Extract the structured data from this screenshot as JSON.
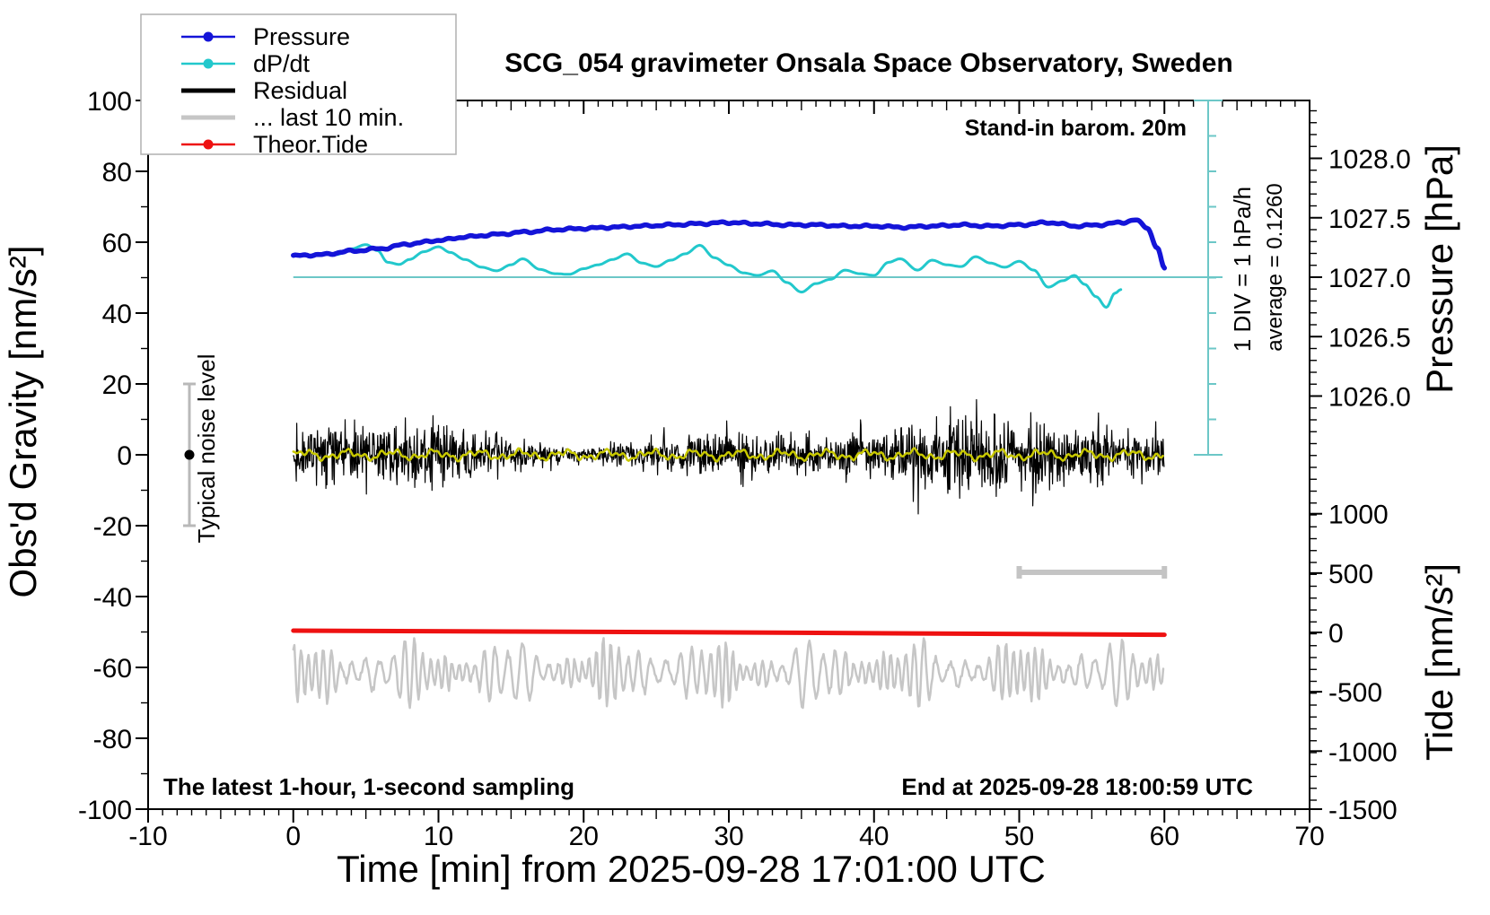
{
  "title": "SCG_054 gravimeter Onsala Space Observatory, Sweden",
  "annotations": {
    "stand_in": "Stand-in barom. 20m",
    "div_scale": "1 DIV = 1 hPa/h",
    "average": "average = 0.1260",
    "noise_label": "Typical noise level",
    "sampling_note": "The latest 1-hour, 1-second sampling",
    "end_note": "End at 2025-09-28 18:00:59 UTC"
  },
  "axes": {
    "x": {
      "title": "Time [min] from 2025-09-28 17:01:00 UTC",
      "min": -10,
      "max": 70,
      "major_ticks": [
        -10,
        0,
        10,
        20,
        30,
        40,
        50,
        60,
        70
      ]
    },
    "gravity": {
      "title": "Obs'd Gravity [nm/s²]",
      "min": -100,
      "max": 100,
      "major_ticks": [
        100,
        80,
        60,
        40,
        20,
        0,
        -20,
        -40,
        -60,
        -80,
        -100
      ]
    },
    "pressure": {
      "title": "Pressure [hPa]",
      "tick_values": [
        1028.0,
        1027.5,
        1027.0,
        1026.5,
        1026.0
      ],
      "tick_labels": [
        "1028.0",
        "1027.5",
        "1027.0",
        "1026.5",
        "1026.0"
      ]
    },
    "tide": {
      "title": "Tide [nm/s²]",
      "tick_values": [
        1000,
        500,
        0,
        -500,
        -1000,
        -1500
      ],
      "tick_labels": [
        "1000",
        "500",
        "0",
        "-500",
        "-1000",
        "-1500"
      ]
    }
  },
  "legend": [
    {
      "label": "Pressure",
      "color": "#1414d8",
      "width": 2.5,
      "dot": true
    },
    {
      "label": "dP/dt",
      "color": "#22c8cc",
      "width": 2.5,
      "dot": true
    },
    {
      "label": "Residual",
      "color": "#000000",
      "width": 5,
      "dot": false
    },
    {
      "label": "... last 10 min.",
      "color": "#c6c6c6",
      "width": 5,
      "dot": false
    },
    {
      "label": "Theor.Tide",
      "color": "#ee1111",
      "width": 2.5,
      "dot": true
    }
  ],
  "colors": {
    "pressure": "#1414d8",
    "dpdt": "#22c8cc",
    "dpdt_reference": "#6cc7c7",
    "residual": "#000000",
    "residual_filtered": "#c8c800",
    "last10": "#c6c6c6",
    "tide": "#ee1111",
    "gray_marker": "#b9b9b9",
    "axis": "#000000"
  },
  "chart_data": {
    "type": "line",
    "x_range_min": [
      -10,
      70
    ],
    "gravity_range": [
      -100,
      100
    ],
    "pressure_axis_range_labeled": [
      1026.0,
      1028.0
    ],
    "tide_axis_range": [
      -1500,
      1000
    ],
    "dpdt_scale": {
      "zero_at_gravity": 50,
      "divisions": 10,
      "div_value_hPa_per_h": 1,
      "average_hPa_per_h": 0.126
    },
    "series": [
      {
        "name": "Pressure",
        "units": "hPa",
        "keypoints_t_min_vs_hPa": [
          [
            0,
            1027.18
          ],
          [
            2,
            1027.19
          ],
          [
            4,
            1027.22
          ],
          [
            6,
            1027.24
          ],
          [
            8,
            1027.28
          ],
          [
            10,
            1027.31
          ],
          [
            12,
            1027.34
          ],
          [
            14,
            1027.36
          ],
          [
            16,
            1027.38
          ],
          [
            18,
            1027.4
          ],
          [
            20,
            1027.41
          ],
          [
            22,
            1027.42
          ],
          [
            24,
            1027.43
          ],
          [
            26,
            1027.44
          ],
          [
            28,
            1027.45
          ],
          [
            30,
            1027.46
          ],
          [
            32,
            1027.45
          ],
          [
            34,
            1027.44
          ],
          [
            36,
            1027.44
          ],
          [
            38,
            1027.43
          ],
          [
            40,
            1027.43
          ],
          [
            42,
            1027.42
          ],
          [
            44,
            1027.43
          ],
          [
            46,
            1027.44
          ],
          [
            48,
            1027.43
          ],
          [
            50,
            1027.44
          ],
          [
            52,
            1027.46
          ],
          [
            54,
            1027.43
          ],
          [
            55.5,
            1027.44
          ],
          [
            57,
            1027.46
          ],
          [
            58,
            1027.48
          ],
          [
            58.8,
            1027.42
          ],
          [
            59.5,
            1027.25
          ],
          [
            60,
            1027.07
          ]
        ]
      },
      {
        "name": "dP/dt",
        "units": "hPa/h",
        "keypoints_t_min_vs_hPa_per_h": [
          [
            3,
            0.64
          ],
          [
            4,
            0.8
          ],
          [
            5,
            0.92
          ],
          [
            5.8,
            0.75
          ],
          [
            6.5,
            0.42
          ],
          [
            7.3,
            0.36
          ],
          [
            8,
            0.5
          ],
          [
            9,
            0.72
          ],
          [
            10,
            0.86
          ],
          [
            10.8,
            0.7
          ],
          [
            11.8,
            0.5
          ],
          [
            13,
            0.28
          ],
          [
            14,
            0.18
          ],
          [
            15,
            0.35
          ],
          [
            15.8,
            0.52
          ],
          [
            17,
            0.22
          ],
          [
            18,
            0.1
          ],
          [
            19,
            0.08
          ],
          [
            20,
            0.24
          ],
          [
            21,
            0.35
          ],
          [
            22,
            0.5
          ],
          [
            23,
            0.66
          ],
          [
            24,
            0.4
          ],
          [
            25,
            0.3
          ],
          [
            26,
            0.48
          ],
          [
            27,
            0.66
          ],
          [
            28,
            0.9
          ],
          [
            29,
            0.55
          ],
          [
            30,
            0.34
          ],
          [
            31,
            0.12
          ],
          [
            32,
            0.05
          ],
          [
            33,
            0.18
          ],
          [
            34,
            -0.15
          ],
          [
            35,
            -0.42
          ],
          [
            36,
            -0.18
          ],
          [
            37,
            -0.06
          ],
          [
            38,
            0.2
          ],
          [
            39,
            0.1
          ],
          [
            40,
            0.05
          ],
          [
            41,
            0.42
          ],
          [
            41.8,
            0.52
          ],
          [
            43,
            0.2
          ],
          [
            44,
            0.48
          ],
          [
            45,
            0.35
          ],
          [
            46,
            0.3
          ],
          [
            47,
            0.58
          ],
          [
            48,
            0.4
          ],
          [
            49,
            0.28
          ],
          [
            50,
            0.45
          ],
          [
            51,
            0.2
          ],
          [
            52,
            -0.28
          ],
          [
            53,
            -0.1
          ],
          [
            53.8,
            0.05
          ],
          [
            54.5,
            -0.2
          ],
          [
            55.3,
            -0.55
          ],
          [
            56,
            -0.85
          ],
          [
            56.6,
            -0.45
          ],
          [
            57,
            -0.35
          ]
        ]
      },
      {
        "name": "Theor.Tide",
        "units": "nm/s2",
        "keypoints_t_min_vs_nms2": [
          [
            0,
            15
          ],
          [
            30,
            0
          ],
          [
            60,
            -20
          ]
        ]
      },
      {
        "name": "Residual",
        "units": "nm/s2",
        "description": "1-second sampled residual noise band centered on 0",
        "t_span_min": [
          0,
          60
        ],
        "mean": 0,
        "typical_std": 4.0,
        "spike_max_abs": 17,
        "seed": 20250928
      },
      {
        "name": "Residual filtered (yellow)",
        "units": "nm/s2",
        "description": "low-pass filtered residual drawn through noise band",
        "t_span_min": [
          0,
          60
        ],
        "mean": 0,
        "amplitude": 1.5
      },
      {
        "name": "... last 10 min.",
        "units": "nm/s2 (offset trace)",
        "description": "last 10 minutes of residual expanded to full width, offset band",
        "t_span_min": [
          0,
          60
        ],
        "offset_center_gravity_units": -61.5,
        "amplitude_units": 8.5,
        "seed": 77
      }
    ],
    "markers": {
      "typical_noise_level": {
        "at_t_min": -7.2,
        "center": 0,
        "half_range": 20
      },
      "last10_source_span_min": [
        50,
        60
      ]
    }
  }
}
